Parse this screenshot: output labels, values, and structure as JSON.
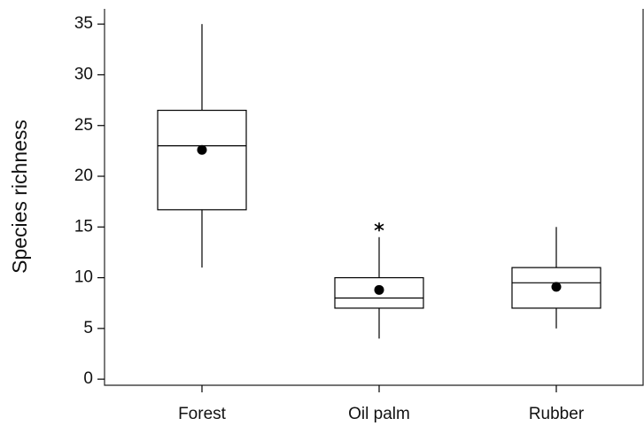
{
  "chart_data": {
    "type": "box",
    "y_label": "Species richness",
    "categories": [
      "Forest",
      "Oil palm",
      "Rubber"
    ],
    "whisker_low": [
      11,
      4,
      5
    ],
    "q1": [
      16.7,
      7,
      7
    ],
    "median": [
      23,
      8,
      9.5
    ],
    "q3": [
      26.5,
      10,
      11
    ],
    "whisker_high": [
      35,
      14,
      15
    ],
    "mean": [
      22.6,
      8.8,
      9.1
    ],
    "outliers": [
      [],
      [
        15
      ],
      []
    ],
    "ylim": [
      -0.6,
      36.5
    ],
    "yticks": [
      0,
      5,
      10,
      15,
      20,
      25,
      30,
      35
    ],
    "color": "#000000"
  }
}
